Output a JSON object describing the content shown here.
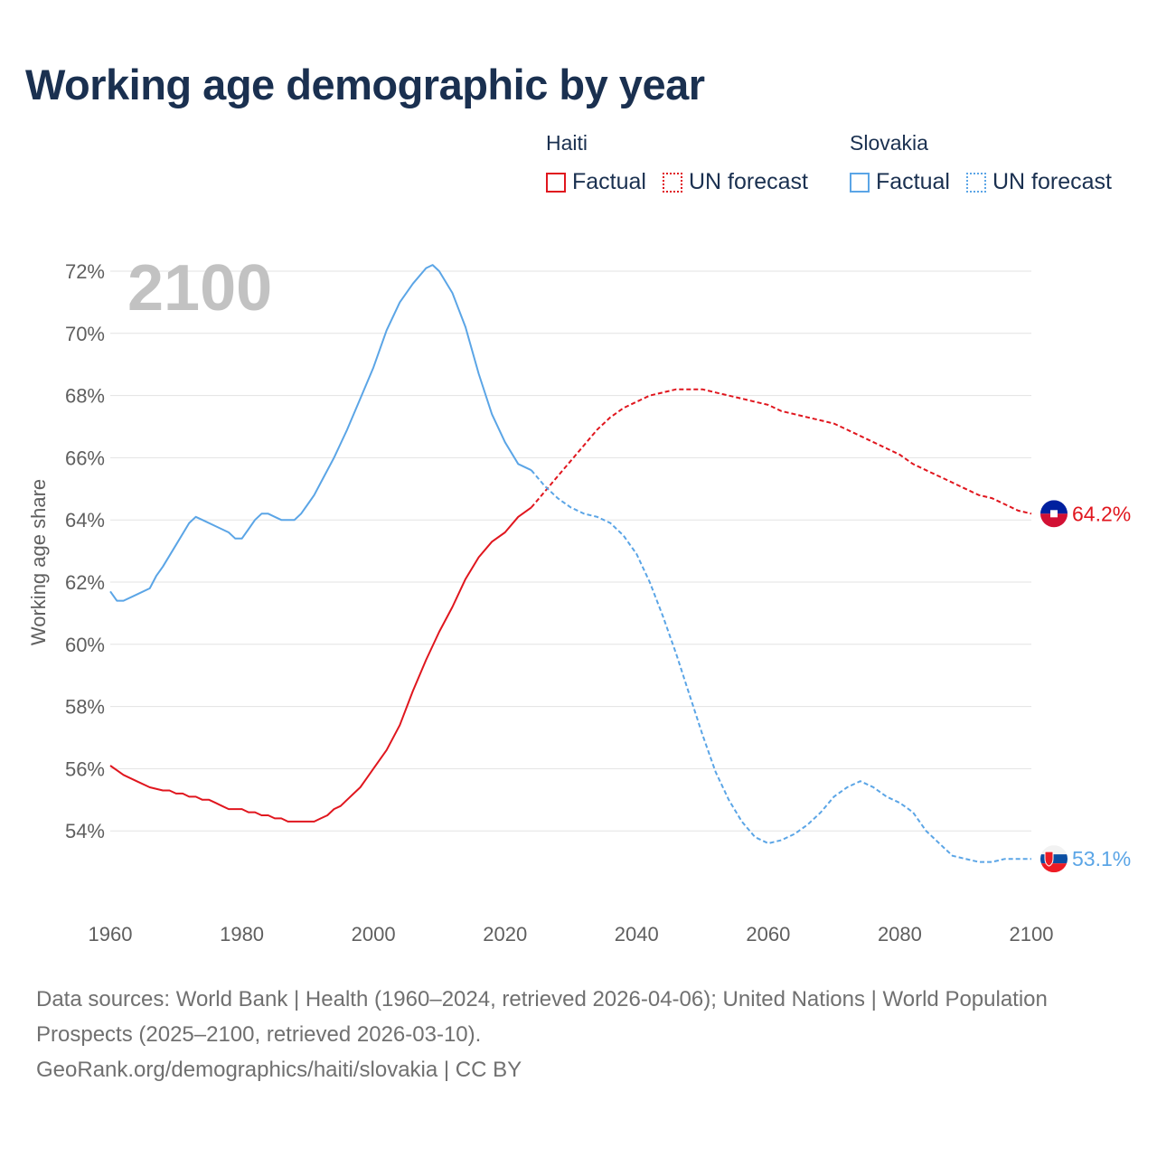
{
  "title": "Working age demographic by year",
  "legend": {
    "groups": [
      {
        "name": "Haiti",
        "color": "#e0161e",
        "factual_label": "Factual",
        "forecast_label": "UN forecast"
      },
      {
        "name": "Slovakia",
        "color": "#5ba5e6",
        "factual_label": "Factual",
        "forecast_label": "UN forecast"
      }
    ]
  },
  "footer": {
    "sources": "Data sources: World Bank | Health (1960–2024, retrieved 2026-04-06); United Nations | World Population Prospects (2025–2100, retrieved 2026-03-10).",
    "link": "GeoRank.org/demographics/haiti/slovakia | CC BY"
  },
  "chart_data": {
    "type": "line",
    "title": "Working age demographic by year",
    "year_overlay": "2100",
    "xlabel": "",
    "ylabel": "Working age share",
    "xlim": [
      1960,
      2100
    ],
    "ylim": [
      52,
      72.5
    ],
    "grid": true,
    "x_ticks": [
      1960,
      1980,
      2000,
      2020,
      2040,
      2060,
      2080,
      2100
    ],
    "y_ticks": [
      54,
      56,
      58,
      60,
      62,
      64,
      66,
      68,
      70,
      72
    ],
    "y_tick_suffix": "%",
    "series": [
      {
        "name": "Haiti",
        "color": "#e0161e",
        "end_label": "64.2%",
        "factual": {
          "years": [
            1960,
            1962,
            1964,
            1966,
            1968,
            1969,
            1970,
            1971,
            1972,
            1973,
            1974,
            1975,
            1976,
            1977,
            1978,
            1979,
            1980,
            1981,
            1982,
            1983,
            1984,
            1985,
            1986,
            1987,
            1988,
            1989,
            1990,
            1991,
            1992,
            1993,
            1994,
            1995,
            1996,
            1997,
            1998,
            1999,
            2000,
            2002,
            2004,
            2006,
            2008,
            2010,
            2012,
            2014,
            2016,
            2018,
            2020,
            2022,
            2024
          ],
          "values": [
            56.1,
            55.8,
            55.6,
            55.4,
            55.3,
            55.3,
            55.2,
            55.2,
            55.1,
            55.1,
            55.0,
            55.0,
            54.9,
            54.8,
            54.7,
            54.7,
            54.7,
            54.6,
            54.6,
            54.5,
            54.5,
            54.4,
            54.4,
            54.3,
            54.3,
            54.3,
            54.3,
            54.3,
            54.4,
            54.5,
            54.7,
            54.8,
            55.0,
            55.2,
            55.4,
            55.7,
            56.0,
            56.6,
            57.4,
            58.5,
            59.5,
            60.4,
            61.2,
            62.1,
            62.8,
            63.3,
            63.6,
            64.1,
            64.4
          ]
        },
        "forecast": {
          "years": [
            2024,
            2026,
            2028,
            2030,
            2032,
            2034,
            2036,
            2038,
            2040,
            2042,
            2044,
            2046,
            2048,
            2050,
            2052,
            2054,
            2056,
            2058,
            2060,
            2062,
            2064,
            2066,
            2068,
            2070,
            2072,
            2074,
            2076,
            2078,
            2080,
            2082,
            2084,
            2086,
            2088,
            2090,
            2092,
            2094,
            2096,
            2098,
            2100
          ],
          "values": [
            64.4,
            64.9,
            65.4,
            65.9,
            66.4,
            66.9,
            67.3,
            67.6,
            67.8,
            68.0,
            68.1,
            68.2,
            68.2,
            68.2,
            68.1,
            68.0,
            67.9,
            67.8,
            67.7,
            67.5,
            67.4,
            67.3,
            67.2,
            67.1,
            66.9,
            66.7,
            66.5,
            66.3,
            66.1,
            65.8,
            65.6,
            65.4,
            65.2,
            65.0,
            64.8,
            64.7,
            64.5,
            64.3,
            64.2
          ]
        }
      },
      {
        "name": "Slovakia",
        "color": "#5ba5e6",
        "end_label": "53.1%",
        "factual": {
          "years": [
            1960,
            1961,
            1962,
            1964,
            1966,
            1967,
            1968,
            1970,
            1972,
            1973,
            1974,
            1976,
            1978,
            1979,
            1980,
            1981,
            1982,
            1983,
            1984,
            1985,
            1986,
            1987,
            1988,
            1989,
            1990,
            1991,
            1992,
            1994,
            1996,
            1998,
            2000,
            2002,
            2004,
            2006,
            2008,
            2009,
            2010,
            2012,
            2014,
            2016,
            2018,
            2020,
            2022,
            2024
          ],
          "values": [
            61.7,
            61.4,
            61.4,
            61.6,
            61.8,
            62.2,
            62.5,
            63.2,
            63.9,
            64.1,
            64.0,
            63.8,
            63.6,
            63.4,
            63.4,
            63.7,
            64.0,
            64.2,
            64.2,
            64.1,
            64.0,
            64.0,
            64.0,
            64.2,
            64.5,
            64.8,
            65.2,
            66.0,
            66.9,
            67.9,
            68.9,
            70.1,
            71.0,
            71.6,
            72.1,
            72.2,
            72.0,
            71.3,
            70.2,
            68.7,
            67.4,
            66.5,
            65.8,
            65.6
          ]
        },
        "forecast": {
          "years": [
            2024,
            2026,
            2028,
            2030,
            2032,
            2034,
            2036,
            2038,
            2040,
            2042,
            2044,
            2046,
            2048,
            2050,
            2052,
            2054,
            2056,
            2058,
            2060,
            2062,
            2064,
            2066,
            2068,
            2070,
            2072,
            2074,
            2076,
            2078,
            2080,
            2082,
            2084,
            2086,
            2088,
            2090,
            2092,
            2094,
            2096,
            2098,
            2100
          ],
          "values": [
            65.6,
            65.1,
            64.7,
            64.4,
            64.2,
            64.1,
            63.9,
            63.5,
            62.9,
            62.0,
            60.9,
            59.7,
            58.4,
            57.1,
            55.9,
            55.0,
            54.3,
            53.8,
            53.6,
            53.7,
            53.9,
            54.2,
            54.6,
            55.1,
            55.4,
            55.6,
            55.4,
            55.1,
            54.9,
            54.6,
            54.0,
            53.6,
            53.2,
            53.1,
            53.0,
            53.0,
            53.1,
            53.1,
            53.1
          ]
        }
      }
    ]
  }
}
